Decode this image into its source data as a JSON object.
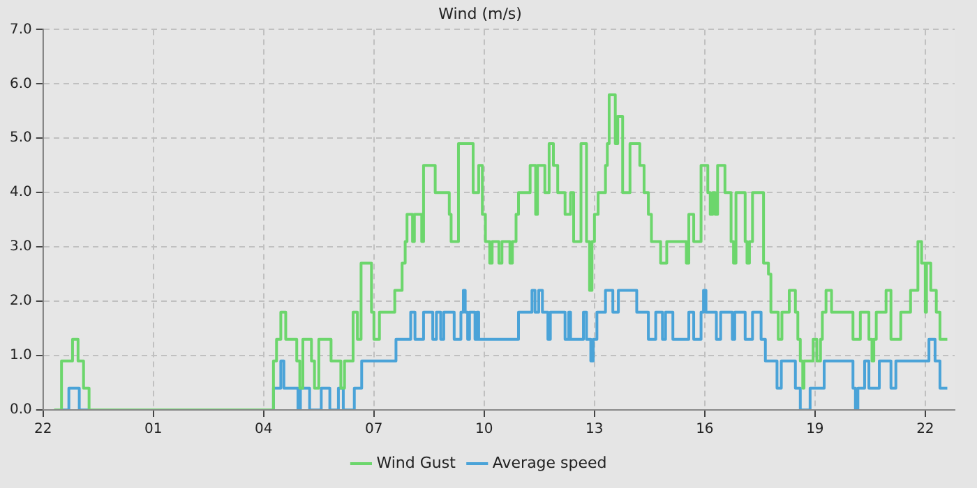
{
  "chart_data": {
    "type": "step",
    "title": "Wind (m/s)",
    "xlim": [
      "--01-01T22:00",
      "--01-02T22:48"
    ],
    "ylim": [
      0,
      7
    ],
    "xticks": [
      {
        "value": "--01-01T22:00",
        "label": "22"
      },
      {
        "value": "--01-02T01:00",
        "label": "01"
      },
      {
        "value": "--01-02T04:00",
        "label": "04"
      },
      {
        "value": "--01-02T07:00",
        "label": "07"
      },
      {
        "value": "--01-02T10:00",
        "label": "10"
      },
      {
        "value": "--01-02T13:00",
        "label": "13"
      },
      {
        "value": "--01-02T16:00",
        "label": "16"
      },
      {
        "value": "--01-02T19:00",
        "label": "19"
      },
      {
        "value": "--01-02T22:00",
        "label": "22"
      }
    ],
    "yticks": [
      {
        "value": 0,
        "label": "0.0"
      },
      {
        "value": 1,
        "label": "1.0"
      },
      {
        "value": 2,
        "label": "2.0"
      },
      {
        "value": 3,
        "label": "3.0"
      },
      {
        "value": 4,
        "label": "4.0"
      },
      {
        "value": 5,
        "label": "5.0"
      },
      {
        "value": 6,
        "label": "6.0"
      },
      {
        "value": 7,
        "label": "7.0"
      }
    ],
    "grid": true,
    "legend": "bottom",
    "marker": "none",
    "line_style": "solid",
    "series": [
      {
        "name": "Wind Gust",
        "color": "#6cd66c",
        "x": [
          "--01-01T22:18",
          "--01-01T22:30",
          "--01-01T22:48",
          "--01-01T22:57",
          "--01-01T23:06",
          "--01-01T23:15",
          "--01-02T04:16",
          "--01-02T04:21",
          "--01-02T04:28",
          "--01-02T04:36",
          "--01-02T04:54",
          "--01-02T04:59",
          "--01-02T05:04",
          "--01-02T05:18",
          "--01-02T05:23",
          "--01-02T05:30",
          "--01-02T05:50",
          "--01-02T06:06",
          "--01-02T06:12",
          "--01-02T06:26",
          "--01-02T06:33",
          "--01-02T06:39",
          "--01-02T06:56",
          "--01-02T07:00",
          "--01-02T07:09",
          "--01-02T07:34",
          "--01-02T07:46",
          "--01-02T07:51",
          "--01-02T07:54",
          "--01-02T08:03",
          "--01-02T08:06",
          "--01-02T08:18",
          "--01-02T08:21",
          "--01-02T08:40",
          "--01-02T09:03",
          "--01-02T09:06",
          "--01-02T09:18",
          "--01-02T09:42",
          "--01-02T09:51",
          "--01-02T09:57",
          "--01-02T10:02",
          "--01-02T10:09",
          "--01-02T10:13",
          "--01-02T10:24",
          "--01-02T10:29",
          "--01-02T10:42",
          "--01-02T10:46",
          "--01-02T10:52",
          "--01-02T10:56",
          "--01-02T11:15",
          "--01-02T11:24",
          "--01-02T11:27",
          "--01-02T11:39",
          "--01-02T11:46",
          "--01-02T11:53",
          "--01-02T12:00",
          "--01-02T12:12",
          "--01-02T12:21",
          "--01-02T12:26",
          "--01-02T12:38",
          "--01-02T12:47",
          "--01-02T12:52",
          "--01-02T12:56",
          "--01-02T13:00",
          "--01-02T13:06",
          "--01-02T13:18",
          "--01-02T13:21",
          "--01-02T13:24",
          "--01-02T13:34",
          "--01-02T13:38",
          "--01-02T13:46",
          "--01-02T13:58",
          "--01-02T14:14",
          "--01-02T14:21",
          "--01-02T14:28",
          "--01-02T14:33",
          "--01-02T14:48",
          "--01-02T14:58",
          "--01-02T15:30",
          "--01-02T15:34",
          "--01-02T15:42",
          "--01-02T15:54",
          "--01-02T16:05",
          "--01-02T16:09",
          "--01-02T16:13",
          "--01-02T16:17",
          "--01-02T16:21",
          "--01-02T16:33",
          "--01-02T16:43",
          "--01-02T16:47",
          "--01-02T16:51",
          "--01-02T17:06",
          "--01-02T17:09",
          "--01-02T17:13",
          "--01-02T17:18",
          "--01-02T17:36",
          "--01-02T17:44",
          "--01-02T17:48",
          "--01-02T18:00",
          "--01-02T18:06",
          "--01-02T18:18",
          "--01-02T18:28",
          "--01-02T18:32",
          "--01-02T18:36",
          "--01-02T18:40",
          "--01-02T18:42",
          "--01-02T18:57",
          "--01-02T19:03",
          "--01-02T19:09",
          "--01-02T19:12",
          "--01-02T19:18",
          "--01-02T19:27",
          "--01-02T20:02",
          "--01-02T20:14",
          "--01-02T20:28",
          "--01-02T20:33",
          "--01-02T20:36",
          "--01-02T20:40",
          "--01-02T20:56",
          "--01-02T21:04",
          "--01-02T21:20",
          "--01-02T21:36",
          "--01-02T21:48",
          "--01-02T21:54",
          "--01-02T22:00",
          "--01-02T22:02",
          "--01-02T22:09",
          "--01-02T22:18",
          "--01-02T22:24",
          "--01-02T22:36"
        ],
        "values": [
          0,
          0.9,
          1.3,
          0.9,
          0.4,
          0,
          0.9,
          1.3,
          1.8,
          1.3,
          0.9,
          0.4,
          1.3,
          0.9,
          0.4,
          1.3,
          0.9,
          0.4,
          0.9,
          1.8,
          1.3,
          2.7,
          1.8,
          1.3,
          1.8,
          2.2,
          2.7,
          3.1,
          3.6,
          3.1,
          3.6,
          3.1,
          4.5,
          4.0,
          3.6,
          3.1,
          4.9,
          4.0,
          4.5,
          3.6,
          3.1,
          2.7,
          3.1,
          2.7,
          3.1,
          2.7,
          3.1,
          3.6,
          4.0,
          4.5,
          3.6,
          4.5,
          4.0,
          4.9,
          4.5,
          4.0,
          3.6,
          4.0,
          3.1,
          4.9,
          3.1,
          2.2,
          3.1,
          3.6,
          4.0,
          4.5,
          4.9,
          5.8,
          4.9,
          5.4,
          4.0,
          4.9,
          4.5,
          4.0,
          3.6,
          3.1,
          2.7,
          3.1,
          2.7,
          3.6,
          3.1,
          4.5,
          4.0,
          3.6,
          4.0,
          3.6,
          4.5,
          4.0,
          3.1,
          2.7,
          4.0,
          3.1,
          2.7,
          3.1,
          4.0,
          2.7,
          2.5,
          1.8,
          1.3,
          1.8,
          2.2,
          1.8,
          1.3,
          0.9,
          0.4,
          0.9,
          1.3,
          0.9,
          1.3,
          1.8,
          2.2,
          1.8,
          1.3,
          1.8,
          1.3,
          0.9,
          1.3,
          1.8,
          2.2,
          1.3,
          1.8,
          2.2,
          3.1,
          2.7,
          1.8,
          2.7,
          2.2,
          1.8,
          1.3,
          1.3
        ]
      },
      {
        "name": "Average speed",
        "color": "#4aa3d8",
        "x": [
          "--01-01T22:21",
          "--01-01T22:42",
          "--01-01T22:59",
          "--01-02T04:16",
          "--01-02T04:28",
          "--01-02T04:33",
          "--01-02T04:56",
          "--01-02T05:00",
          "--01-02T05:15",
          "--01-02T05:34",
          "--01-02T05:48",
          "--01-02T06:02",
          "--01-02T06:10",
          "--01-02T06:28",
          "--01-02T06:40",
          "--01-02T07:36",
          "--01-02T08:00",
          "--01-02T08:07",
          "--01-02T08:21",
          "--01-02T08:36",
          "--01-02T08:42",
          "--01-02T08:49",
          "--01-02T08:54",
          "--01-02T09:11",
          "--01-02T09:22",
          "--01-02T09:26",
          "--01-02T09:29",
          "--01-02T09:33",
          "--01-02T09:36",
          "--01-02T09:45",
          "--01-02T09:48",
          "--01-02T09:51",
          "--01-02T10:56",
          "--01-02T11:18",
          "--01-02T11:23",
          "--01-02T11:29",
          "--01-02T11:35",
          "--01-02T11:44",
          "--01-02T11:48",
          "--01-02T12:12",
          "--01-02T12:18",
          "--01-02T12:21",
          "--01-02T12:42",
          "--01-02T12:47",
          "--01-02T12:54",
          "--01-02T12:58",
          "--01-02T13:04",
          "--01-02T13:18",
          "--01-02T13:30",
          "--01-02T13:39",
          "--01-02T14:09",
          "--01-02T14:28",
          "--01-02T14:40",
          "--01-02T14:51",
          "--01-02T14:56",
          "--01-02T15:08",
          "--01-02T15:34",
          "--01-02T15:42",
          "--01-02T15:54",
          "--01-02T15:58",
          "--01-02T16:02",
          "--01-02T16:19",
          "--01-02T16:26",
          "--01-02T16:45",
          "--01-02T16:49",
          "--01-02T17:06",
          "--01-02T17:18",
          "--01-02T17:32",
          "--01-02T17:39",
          "--01-02T17:58",
          "--01-02T18:05",
          "--01-02T18:28",
          "--01-02T18:36",
          "--01-02T18:52",
          "--01-02T19:15",
          "--01-02T20:02",
          "--01-02T20:06",
          "--01-02T20:10",
          "--01-02T20:21",
          "--01-02T20:28",
          "--01-02T20:45",
          "--01-02T21:04",
          "--01-02T21:12",
          "--01-02T22:06",
          "--01-02T22:16",
          "--01-02T22:24",
          "--01-02T22:36"
        ],
        "values": [
          0,
          0.4,
          0,
          0.4,
          0.9,
          0.4,
          0,
          0.4,
          0,
          0.4,
          0,
          0.4,
          0,
          0.4,
          0.9,
          1.3,
          1.8,
          1.3,
          1.8,
          1.3,
          1.8,
          1.3,
          1.8,
          1.3,
          1.8,
          2.2,
          1.8,
          1.3,
          1.8,
          1.3,
          1.8,
          1.3,
          1.8,
          2.2,
          1.8,
          2.2,
          1.8,
          1.3,
          1.8,
          1.3,
          1.8,
          1.3,
          1.8,
          1.3,
          0.9,
          1.3,
          1.8,
          2.2,
          1.8,
          2.2,
          1.8,
          1.3,
          1.8,
          1.3,
          1.8,
          1.3,
          1.8,
          1.3,
          1.8,
          2.2,
          1.8,
          1.3,
          1.8,
          1.3,
          1.8,
          1.3,
          1.8,
          1.3,
          0.9,
          0.4,
          0.9,
          0.4,
          0,
          0.4,
          0.9,
          0.4,
          0,
          0.4,
          0.9,
          0.4,
          0.9,
          0.4,
          0.9,
          1.3,
          0.9,
          0.4,
          0.4
        ]
      }
    ]
  }
}
